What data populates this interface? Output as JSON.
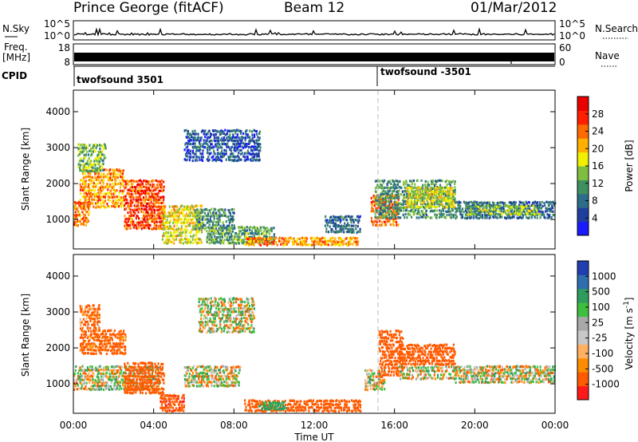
{
  "header": {
    "site": "Prince George (fitACF)",
    "beam": "Beam 12",
    "date": "01/Mar/2012"
  },
  "noise_panel": {
    "left_label": "N.Sky",
    "left_ticks": [
      "10^5",
      "10^0"
    ],
    "right_label": "N.Search",
    "right_ticks": [
      "10^5",
      "10^0"
    ]
  },
  "freq_panel": {
    "left_label_line1": "Freq.",
    "left_label_line2": "[MHz]",
    "left_ticks": [
      "18",
      "8"
    ],
    "right_label": "Nave",
    "right_ticks": [
      "60",
      "0"
    ]
  },
  "cpid_panel": {
    "label": "CPID",
    "entries": [
      {
        "text": "twofsound 3501",
        "start_hour": 0
      },
      {
        "text": "twofsound -3501",
        "start_hour": 15.3
      }
    ]
  },
  "colors": {
    "power": [
      "#1a1aff",
      "#1f3f9f",
      "#2c6e8a",
      "#3f8f5f",
      "#7fbf3f",
      "#f0f000",
      "#ffb000",
      "#ff6a00",
      "#ff2000",
      "#e80000"
    ],
    "velocity": [
      "#ff1a1a",
      "#ff5a00",
      "#ff8c00",
      "#ffb060",
      "#c8c8c8",
      "#a8a8a8",
      "#3fbf3f",
      "#2e9e5e",
      "#2f6fb0",
      "#1f3fb0"
    ]
  },
  "chart_data": [
    {
      "type": "heatmap",
      "panel": "power",
      "xlabel": "Time UT",
      "ylabel": "Slant Range [km]",
      "xlim": [
        0,
        24
      ],
      "ylim": [
        180,
        4600
      ],
      "x_ticks": [
        "00:00",
        "04:00",
        "08:00",
        "12:00",
        "16:00",
        "20:00",
        "00:00"
      ],
      "y_ticks": [
        1000,
        2000,
        3000,
        4000
      ],
      "colorbar": {
        "label": "Power [dB]",
        "range": [
          0,
          32
        ],
        "ticks": [
          4,
          8,
          12,
          16,
          20,
          24,
          28
        ]
      },
      "bands": [
        {
          "t0": 0.0,
          "t1": 0.8,
          "r0": 800,
          "r1": 1500,
          "value": 24
        },
        {
          "t0": 0.3,
          "t1": 2.5,
          "r0": 1300,
          "r1": 2400,
          "value": 22
        },
        {
          "t0": 2.5,
          "t1": 4.5,
          "r0": 700,
          "r1": 2100,
          "value": 26
        },
        {
          "t0": 0.2,
          "t1": 1.6,
          "r0": 2300,
          "r1": 3100,
          "value": 14
        },
        {
          "t0": 4.4,
          "t1": 6.4,
          "r0": 300,
          "r1": 1400,
          "value": 18
        },
        {
          "t0": 6.0,
          "t1": 8.0,
          "r0": 700,
          "r1": 1300,
          "value": 10
        },
        {
          "t0": 5.5,
          "t1": 9.3,
          "r0": 2600,
          "r1": 3500,
          "value": 6
        },
        {
          "t0": 6.6,
          "t1": 10.0,
          "r0": 300,
          "r1": 800,
          "value": 12
        },
        {
          "t0": 8.5,
          "t1": 14.2,
          "r0": 250,
          "r1": 500,
          "value": 22
        },
        {
          "t0": 12.5,
          "t1": 14.3,
          "r0": 600,
          "r1": 1100,
          "value": 8
        },
        {
          "t0": 14.8,
          "t1": 16.2,
          "r0": 800,
          "r1": 1700,
          "value": 24
        },
        {
          "t0": 15.0,
          "t1": 19.0,
          "r0": 1000,
          "r1": 2100,
          "value": 11
        },
        {
          "t0": 16.5,
          "t1": 19.0,
          "r0": 1300,
          "r1": 1900,
          "value": 17
        },
        {
          "t0": 19.0,
          "t1": 24.0,
          "r0": 1000,
          "r1": 1500,
          "value": 8
        },
        {
          "t0": 19.5,
          "t1": 23.2,
          "r0": 1100,
          "r1": 1400,
          "value": 15
        }
      ]
    },
    {
      "type": "heatmap",
      "panel": "velocity",
      "xlabel": "Time UT",
      "ylabel": "Slant Range [km]",
      "xlim": [
        0,
        24
      ],
      "ylim": [
        180,
        4600
      ],
      "x_ticks": [
        "00:00",
        "04:00",
        "08:00",
        "12:00",
        "16:00",
        "20:00",
        "00:00"
      ],
      "y_ticks": [
        1000,
        2000,
        3000,
        4000
      ],
      "colorbar": {
        "label": "Velocity [m s^-1]",
        "range": [
          -1000,
          1000
        ],
        "ticks": [
          1000,
          500,
          100,
          25,
          -25,
          -100,
          -500,
          -1000
        ]
      },
      "bands": [
        {
          "t0": 0.0,
          "t1": 4.3,
          "r0": 800,
          "r1": 1500,
          "value": 0
        },
        {
          "t0": 0.3,
          "t1": 2.6,
          "r0": 1800,
          "r1": 2500,
          "value": -200
        },
        {
          "t0": 0.3,
          "t1": 1.3,
          "r0": 2500,
          "r1": 3200,
          "value": -150
        },
        {
          "t0": 2.5,
          "t1": 4.5,
          "r0": 700,
          "r1": 1600,
          "value": -300
        },
        {
          "t0": 4.3,
          "t1": 5.5,
          "r0": 200,
          "r1": 700,
          "value": -400
        },
        {
          "t0": 5.5,
          "t1": 8.3,
          "r0": 900,
          "r1": 1500,
          "value": 0
        },
        {
          "t0": 6.2,
          "t1": 9.0,
          "r0": 2400,
          "r1": 3400,
          "value": 0
        },
        {
          "t0": 8.5,
          "t1": 14.3,
          "r0": 200,
          "r1": 550,
          "value": -300
        },
        {
          "t0": 9.2,
          "t1": 10.6,
          "r0": 250,
          "r1": 500,
          "value": 200
        },
        {
          "t0": 14.5,
          "t1": 15.5,
          "r0": 800,
          "r1": 1400,
          "value": 0
        },
        {
          "t0": 15.2,
          "t1": 16.4,
          "r0": 1200,
          "r1": 2500,
          "value": -300
        },
        {
          "t0": 16.2,
          "t1": 19.0,
          "r0": 1100,
          "r1": 1500,
          "value": 0
        },
        {
          "t0": 16.2,
          "t1": 19.0,
          "r0": 1500,
          "r1": 2100,
          "value": -250
        },
        {
          "t0": 19.0,
          "t1": 24.0,
          "r0": 1000,
          "r1": 1500,
          "value": 0
        }
      ]
    }
  ]
}
